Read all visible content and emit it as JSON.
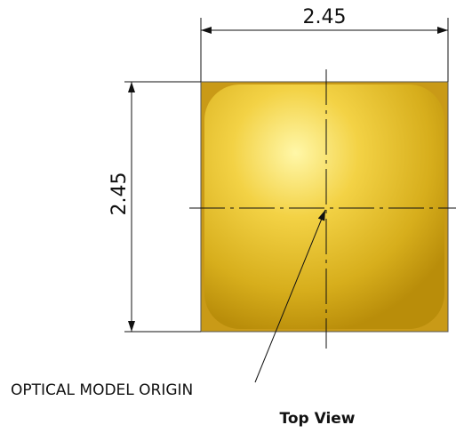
{
  "dimensions": {
    "width": 2.45,
    "height": 2.45
  },
  "labels": {
    "origin": "OPTICAL MODEL ORIGIN",
    "view": "Top View"
  }
}
